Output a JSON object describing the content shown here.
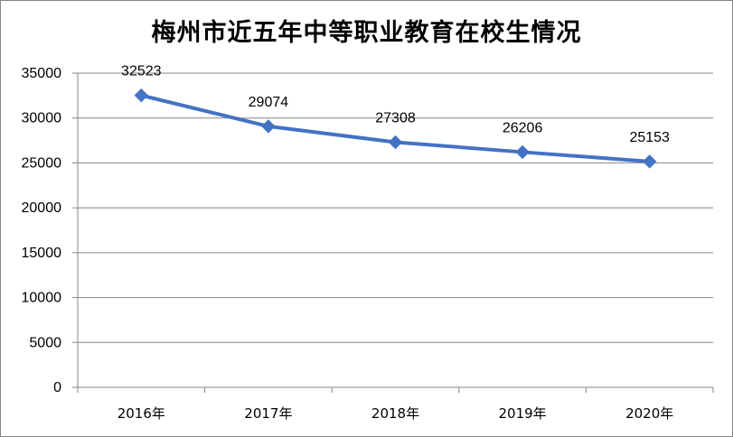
{
  "chart_data": {
    "type": "line",
    "title": "梅州市近五年中等职业教育在校生情况",
    "xlabel": "",
    "ylabel": "",
    "categories": [
      "2016年",
      "2017年",
      "2018年",
      "2019年",
      "2020年"
    ],
    "series": [
      {
        "values": [
          32523,
          29074,
          27308,
          26206,
          25153
        ],
        "color": "#4472C4",
        "marker": "diamond",
        "data_labels": [
          "32523",
          "29074",
          "27308",
          "26206",
          "25153"
        ]
      }
    ],
    "ylim": [
      0,
      35000
    ],
    "yticks": [
      0,
      5000,
      10000,
      15000,
      20000,
      25000,
      30000,
      35000
    ],
    "ytick_labels": [
      "0",
      "5000",
      "10000",
      "15000",
      "20000",
      "25000",
      "30000",
      "35000"
    ],
    "grid": "horizontal",
    "legend": "none"
  }
}
